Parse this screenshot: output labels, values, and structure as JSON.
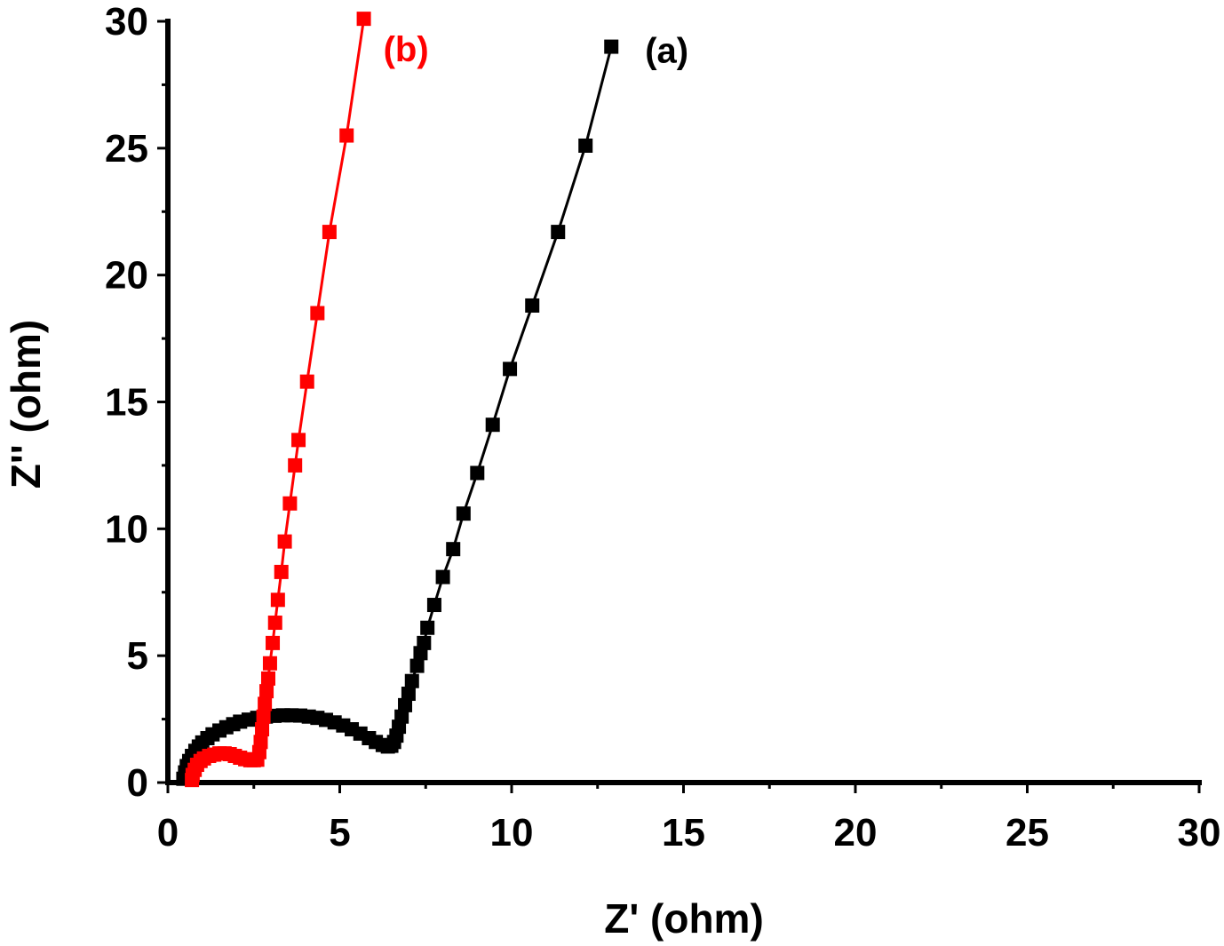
{
  "chart_data": {
    "type": "scatter",
    "xlabel": "Z' (ohm)",
    "ylabel": "Z'' (ohm)",
    "xlim": [
      0,
      30
    ],
    "ylim": [
      0,
      30
    ],
    "xticks": [
      0,
      5,
      10,
      15,
      20,
      25,
      30
    ],
    "yticks": [
      0,
      5,
      10,
      15,
      20,
      25,
      30
    ],
    "xtick_labels": [
      "0",
      "5",
      "10",
      "15",
      "20",
      "25",
      "30"
    ],
    "ytick_labels": [
      "0",
      "5",
      "10",
      "15",
      "20",
      "25",
      "30"
    ],
    "grid": false,
    "series": [
      {
        "name": "(a)",
        "color": "#000000",
        "points": [
          [
            0.45,
            0.15
          ],
          [
            0.5,
            0.4
          ],
          [
            0.55,
            0.65
          ],
          [
            0.62,
            0.85
          ],
          [
            0.7,
            1.05
          ],
          [
            0.8,
            1.25
          ],
          [
            0.9,
            1.42
          ],
          [
            1.0,
            1.58
          ],
          [
            1.15,
            1.75
          ],
          [
            1.3,
            1.9
          ],
          [
            1.5,
            2.05
          ],
          [
            1.7,
            2.18
          ],
          [
            1.9,
            2.3
          ],
          [
            2.1,
            2.4
          ],
          [
            2.35,
            2.48
          ],
          [
            2.6,
            2.55
          ],
          [
            2.85,
            2.6
          ],
          [
            3.1,
            2.63
          ],
          [
            3.35,
            2.65
          ],
          [
            3.6,
            2.65
          ],
          [
            3.85,
            2.64
          ],
          [
            4.1,
            2.6
          ],
          [
            4.35,
            2.55
          ],
          [
            4.6,
            2.47
          ],
          [
            4.85,
            2.37
          ],
          [
            5.1,
            2.25
          ],
          [
            5.35,
            2.1
          ],
          [
            5.6,
            1.93
          ],
          [
            5.85,
            1.75
          ],
          [
            6.05,
            1.6
          ],
          [
            6.25,
            1.48
          ],
          [
            6.4,
            1.42
          ],
          [
            6.5,
            1.45
          ],
          [
            6.58,
            1.6
          ],
          [
            6.65,
            1.85
          ],
          [
            6.72,
            2.2
          ],
          [
            6.8,
            2.6
          ],
          [
            6.9,
            3.05
          ],
          [
            7.0,
            3.5
          ],
          [
            7.1,
            4.0
          ],
          [
            7.25,
            4.6
          ],
          [
            7.35,
            5.1
          ],
          [
            7.45,
            5.5
          ],
          [
            7.55,
            6.1
          ],
          [
            7.75,
            7.0
          ],
          [
            8.0,
            8.1
          ],
          [
            8.3,
            9.2
          ],
          [
            8.6,
            10.6
          ],
          [
            9.0,
            12.2
          ],
          [
            9.45,
            14.1
          ],
          [
            9.95,
            16.3
          ],
          [
            10.6,
            18.8
          ],
          [
            11.35,
            21.7
          ],
          [
            12.15,
            25.1
          ],
          [
            12.9,
            29.0
          ]
        ]
      },
      {
        "name": "(b)",
        "color": "#ff0000",
        "points": [
          [
            0.7,
            0.1
          ],
          [
            0.72,
            0.3
          ],
          [
            0.78,
            0.5
          ],
          [
            0.85,
            0.7
          ],
          [
            0.95,
            0.85
          ],
          [
            1.05,
            0.95
          ],
          [
            1.2,
            1.05
          ],
          [
            1.35,
            1.1
          ],
          [
            1.5,
            1.15
          ],
          [
            1.65,
            1.15
          ],
          [
            1.8,
            1.12
          ],
          [
            1.95,
            1.05
          ],
          [
            2.1,
            0.98
          ],
          [
            2.25,
            0.92
          ],
          [
            2.4,
            0.88
          ],
          [
            2.5,
            0.88
          ],
          [
            2.6,
            0.9
          ],
          [
            2.66,
            1.2
          ],
          [
            2.7,
            1.6
          ],
          [
            2.74,
            2.1
          ],
          [
            2.78,
            2.6
          ],
          [
            2.82,
            3.1
          ],
          [
            2.87,
            3.6
          ],
          [
            2.92,
            4.1
          ],
          [
            2.97,
            4.7
          ],
          [
            3.05,
            5.5
          ],
          [
            3.12,
            6.3
          ],
          [
            3.2,
            7.2
          ],
          [
            3.3,
            8.3
          ],
          [
            3.4,
            9.5
          ],
          [
            3.55,
            11.0
          ],
          [
            3.7,
            12.5
          ],
          [
            3.8,
            13.5
          ],
          [
            4.05,
            15.8
          ],
          [
            4.35,
            18.5
          ],
          [
            4.7,
            21.7
          ],
          [
            5.2,
            25.5
          ],
          [
            5.7,
            30.1
          ]
        ]
      }
    ]
  }
}
